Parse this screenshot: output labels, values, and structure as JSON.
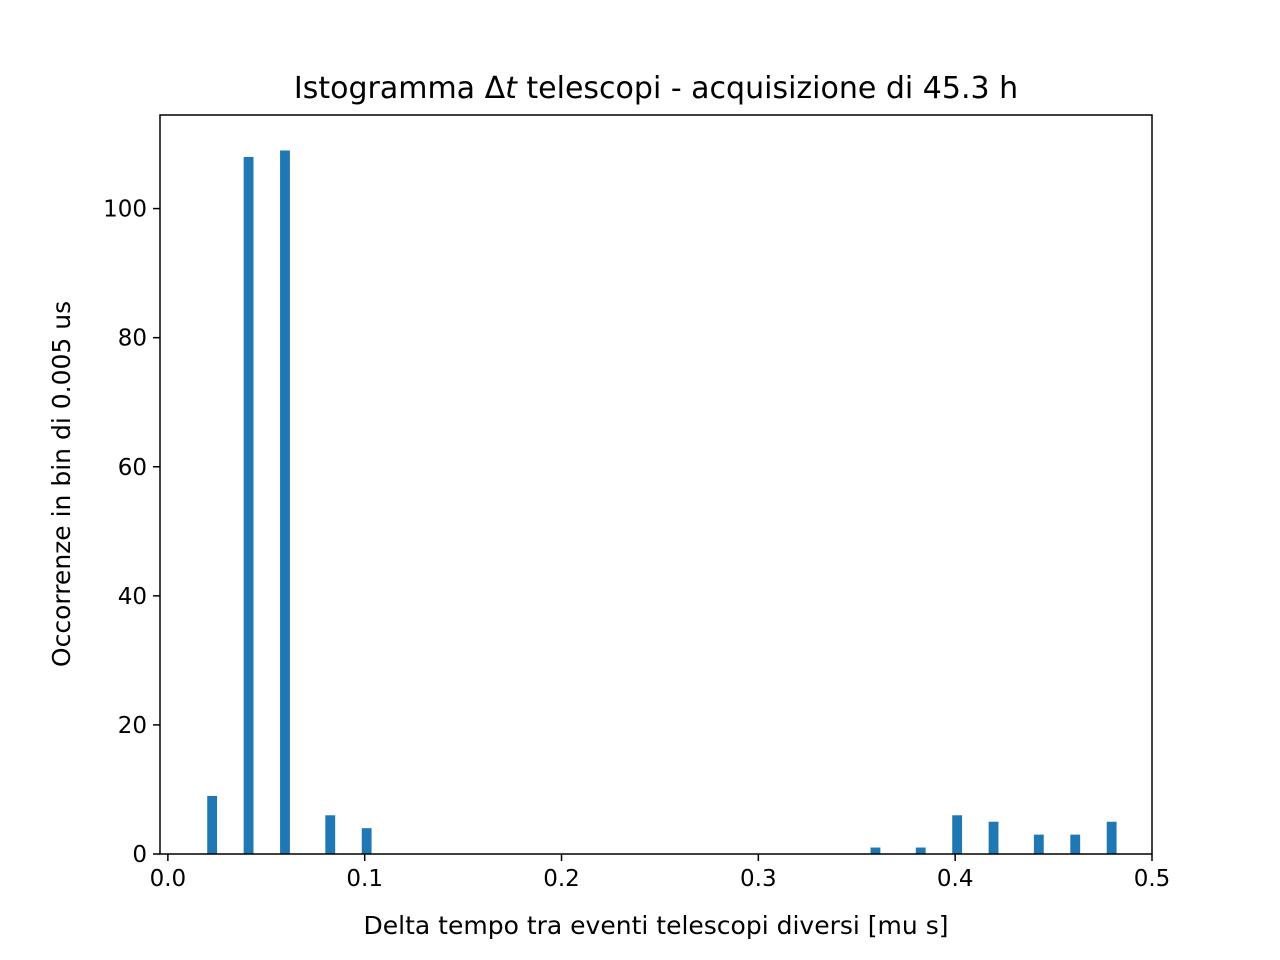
{
  "chart_data": {
    "type": "bar",
    "title_prefix": "Istogramma Δ",
    "title_var": "t",
    "title_suffix": " telescopi - acquisizione di 45.3 h",
    "xlabel": "Delta tempo tra eventi telescopi diversi [mu s]",
    "ylabel": "Occorrenze in bin di 0.005 us",
    "xlim": [
      -0.004,
      0.5
    ],
    "ylim": [
      0,
      114.5
    ],
    "bin_width": 0.005,
    "xticks": [
      0.0,
      0.1,
      0.2,
      0.3,
      0.4,
      0.5
    ],
    "xtick_labels": [
      "0.0",
      "0.1",
      "0.2",
      "0.3",
      "0.4",
      "0.5"
    ],
    "yticks": [
      0,
      20,
      40,
      60,
      80,
      100
    ],
    "ytick_labels": [
      "0",
      "20",
      "40",
      "60",
      "80",
      "100"
    ],
    "bar_color": "#1f77b4",
    "bins": [
      {
        "x": 0.0225,
        "value": 9
      },
      {
        "x": 0.041,
        "value": 108
      },
      {
        "x": 0.0595,
        "value": 109
      },
      {
        "x": 0.0825,
        "value": 6
      },
      {
        "x": 0.101,
        "value": 4
      },
      {
        "x": 0.3595,
        "value": 1
      },
      {
        "x": 0.3825,
        "value": 1
      },
      {
        "x": 0.401,
        "value": 6
      },
      {
        "x": 0.4195,
        "value": 5
      },
      {
        "x": 0.4425,
        "value": 3
      },
      {
        "x": 0.461,
        "value": 3
      },
      {
        "x": 0.4795,
        "value": 5
      }
    ],
    "grid": false,
    "legend": "none"
  }
}
